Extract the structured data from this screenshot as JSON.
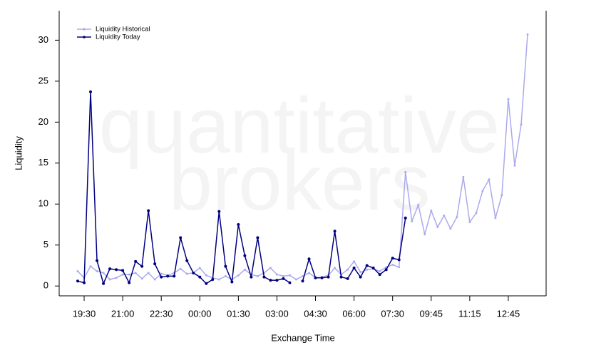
{
  "chart_data": {
    "type": "line",
    "watermark": [
      "quantitative",
      "brokers"
    ],
    "xlabel": "Exchange Time",
    "ylabel": "Liquidity",
    "categories": [
      null,
      "19:30",
      null,
      null,
      null,
      null,
      null,
      "21:00",
      null,
      null,
      null,
      null,
      null,
      "22:30",
      null,
      null,
      null,
      null,
      null,
      "00:00",
      null,
      null,
      null,
      null,
      null,
      "01:30",
      null,
      null,
      null,
      null,
      null,
      "03:00",
      null,
      null,
      null,
      null,
      null,
      "04:30",
      null,
      null,
      null,
      null,
      null,
      "06:00",
      null,
      null,
      null,
      null,
      null,
      "07:30",
      null,
      null,
      null,
      null,
      null,
      "09:45",
      null,
      null,
      null,
      null,
      null,
      "11:15",
      null,
      null,
      null,
      null,
      null,
      "12:45",
      null,
      null,
      null
    ],
    "series": [
      {
        "name": "Liquidity Historical",
        "color": "#aaaaee",
        "values": [
          1.8,
          1.0,
          2.4,
          1.8,
          1.6,
          0.8,
          1.0,
          1.4,
          1.4,
          1.6,
          0.9,
          1.6,
          0.8,
          1.5,
          1.3,
          1.6,
          2.1,
          1.5,
          1.6,
          2.2,
          1.3,
          1.0,
          0.8,
          1.2,
          0.8,
          1.3,
          2.0,
          1.4,
          1.2,
          1.6,
          2.2,
          1.4,
          1.2,
          1.3,
          0.8,
          1.2,
          1.6,
          1.0,
          1.1,
          1.3,
          2.2,
          1.4,
          2.0,
          3.0,
          1.7,
          2.0,
          2.1,
          1.8,
          2.3,
          2.6,
          2.3,
          13.9,
          7.9,
          9.9,
          6.3,
          9.2,
          7.2,
          8.6,
          7.0,
          8.4,
          13.3,
          7.8,
          8.9,
          11.6,
          13.0,
          8.3,
          11.1,
          22.8,
          14.7,
          19.7,
          30.7
        ]
      },
      {
        "name": "Liquidity Today",
        "color": "#000080",
        "values": [
          0.6,
          0.4,
          23.7,
          3.1,
          0.3,
          2.1,
          2.0,
          1.9,
          0.4,
          3.0,
          2.4,
          9.2,
          2.7,
          1.1,
          1.2,
          1.2,
          5.9,
          3.1,
          1.6,
          1.1,
          0.3,
          0.8,
          9.1,
          2.4,
          0.5,
          7.5,
          3.7,
          1.1,
          5.9,
          1.1,
          0.7,
          0.7,
          0.9,
          0.4,
          null,
          0.6,
          3.3,
          1.0,
          1.0,
          1.1,
          6.7,
          1.1,
          0.9,
          2.2,
          1.1,
          2.5,
          2.2,
          1.4,
          2.0,
          3.4,
          3.2,
          8.3,
          null,
          null,
          null,
          null,
          null,
          null,
          null,
          null,
          null,
          null,
          null,
          null,
          null,
          null,
          null,
          null,
          null,
          null,
          null
        ]
      }
    ],
    "ylim": [
      -1.2,
      33.6
    ],
    "yticks": [
      0,
      5,
      10,
      15,
      20,
      25,
      30
    ],
    "legend": "top-left"
  }
}
